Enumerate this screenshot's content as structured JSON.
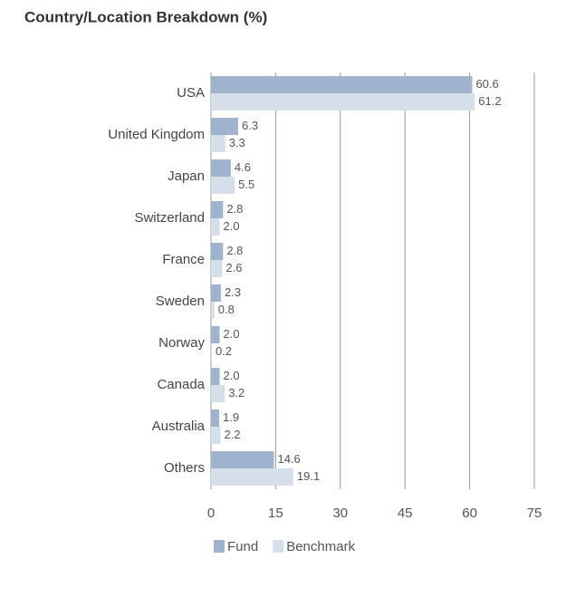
{
  "chart_data": {
    "type": "hbar",
    "title": "Country/Location Breakdown (%)",
    "categories": [
      "USA",
      "United Kingdom",
      "Japan",
      "Switzerland",
      "France",
      "Sweden",
      "Norway",
      "Canada",
      "Australia",
      "Others"
    ],
    "series": [
      {
        "name": "Fund",
        "color": "#9fb3cc",
        "values": [
          60.6,
          6.3,
          4.6,
          2.8,
          2.8,
          2.3,
          2.0,
          2.0,
          1.9,
          14.6
        ],
        "value_labels": [
          "60.6",
          "6.3",
          "4.6",
          "2.8",
          "2.8",
          "2.3",
          "2.0",
          "2.0",
          "1.9",
          "14.6"
        ]
      },
      {
        "name": "Benchmark",
        "color": "#d5dfe9",
        "values": [
          61.2,
          3.3,
          5.5,
          2.0,
          2.6,
          0.8,
          0.2,
          3.2,
          2.2,
          19.1
        ],
        "value_labels": [
          "61.2",
          "3.3",
          "5.5",
          "2.0",
          "2.6",
          "0.8",
          "0.2",
          "3.2",
          "2.2",
          "19.1"
        ]
      }
    ],
    "xlim": [
      0,
      75
    ],
    "xticks": [
      0,
      15,
      30,
      45,
      60,
      75
    ],
    "grid": true,
    "legend": "bottom"
  }
}
